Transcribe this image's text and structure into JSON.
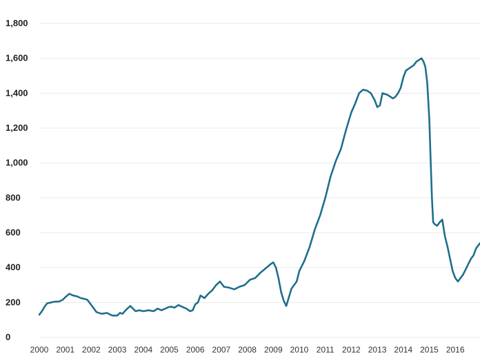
{
  "chart_data": {
    "type": "line",
    "title": "",
    "xlabel": "",
    "ylabel": "",
    "xlim": [
      2000,
      2016.95
    ],
    "ylim": [
      0,
      1800
    ],
    "yticks": [
      0,
      200,
      400,
      600,
      800,
      1000,
      1200,
      1400,
      1600,
      1800
    ],
    "ytick_labels": [
      "0",
      "200",
      "400",
      "600",
      "800",
      "1,000",
      "1,200",
      "1,400",
      "1,600",
      "1,800"
    ],
    "xticks": [
      2000,
      2001,
      2002,
      2003,
      2004,
      2005,
      2006,
      2007,
      2008,
      2009,
      2010,
      2011,
      2012,
      2013,
      2014,
      2015,
      2016
    ],
    "xtick_labels": [
      "2000",
      "2001",
      "2002",
      "2003",
      "2004",
      "2005",
      "2006",
      "2007",
      "2008",
      "2009",
      "2010",
      "2011",
      "2012",
      "2013",
      "2014",
      "2015",
      "2016"
    ],
    "grid": true,
    "legend": "none",
    "series": [
      {
        "color": "#1f6e8c",
        "x": [
          2000.0,
          2000.1,
          2000.2,
          2000.3,
          2000.45,
          2000.6,
          2000.75,
          2000.9,
          2001.0,
          2001.15,
          2001.3,
          2001.45,
          2001.6,
          2001.75,
          2001.85,
          2002.0,
          2002.2,
          2002.4,
          2002.6,
          2002.8,
          2003.0,
          2003.1,
          2003.2,
          2003.35,
          2003.5,
          2003.7,
          2003.85,
          2004.0,
          2004.2,
          2004.4,
          2004.55,
          2004.7,
          2004.85,
          2005.0,
          2005.1,
          2005.2,
          2005.35,
          2005.5,
          2005.65,
          2005.8,
          2005.9,
          2006.0,
          2006.1,
          2006.2,
          2006.35,
          2006.5,
          2006.65,
          2006.8,
          2006.95,
          2007.1,
          2007.3,
          2007.5,
          2007.7,
          2007.9,
          2008.1,
          2008.3,
          2008.5,
          2008.7,
          2008.9,
          2009.0,
          2009.1,
          2009.2,
          2009.3,
          2009.4,
          2009.5,
          2009.6,
          2009.7,
          2009.8,
          2009.9,
          2010.0,
          2010.2,
          2010.4,
          2010.6,
          2010.8,
          2011.0,
          2011.2,
          2011.4,
          2011.6,
          2011.8,
          2012.0,
          2012.15,
          2012.3,
          2012.45,
          2012.6,
          2012.75,
          2012.9,
          2013.0,
          2013.1,
          2013.2,
          2013.3,
          2013.4,
          2013.5,
          2013.6,
          2013.7,
          2013.8,
          2013.9,
          2014.0,
          2014.1,
          2014.2,
          2014.3,
          2014.4,
          2014.5,
          2014.6,
          2014.7,
          2014.78,
          2014.85,
          2014.92,
          2015.0,
          2015.05,
          2015.1,
          2015.15,
          2015.2,
          2015.3,
          2015.4,
          2015.5,
          2015.6,
          2015.7,
          2015.8,
          2015.9,
          2016.0,
          2016.1,
          2016.2,
          2016.3,
          2016.4,
          2016.5,
          2016.6,
          2016.7,
          2016.8,
          2016.95
        ],
        "y": [
          130,
          150,
          175,
          195,
          200,
          205,
          205,
          215,
          230,
          250,
          240,
          235,
          225,
          220,
          215,
          185,
          145,
          135,
          140,
          125,
          125,
          140,
          135,
          160,
          180,
          150,
          155,
          150,
          155,
          150,
          165,
          155,
          165,
          175,
          175,
          170,
          185,
          175,
          165,
          150,
          155,
          190,
          200,
          240,
          225,
          250,
          270,
          300,
          320,
          290,
          285,
          275,
          290,
          300,
          330,
          340,
          370,
          395,
          420,
          430,
          400,
          340,
          260,
          210,
          180,
          230,
          280,
          300,
          320,
          380,
          440,
          520,
          620,
          700,
          800,
          920,
          1010,
          1080,
          1190,
          1290,
          1340,
          1400,
          1420,
          1415,
          1400,
          1360,
          1320,
          1330,
          1400,
          1395,
          1390,
          1380,
          1370,
          1380,
          1400,
          1430,
          1490,
          1530,
          1540,
          1550,
          1560,
          1580,
          1590,
          1600,
          1580,
          1550,
          1460,
          1250,
          1020,
          800,
          660,
          650,
          640,
          660,
          675,
          580,
          520,
          450,
          380,
          340,
          320,
          340,
          360,
          390,
          420,
          450,
          470,
          510,
          540
        ]
      }
    ]
  }
}
